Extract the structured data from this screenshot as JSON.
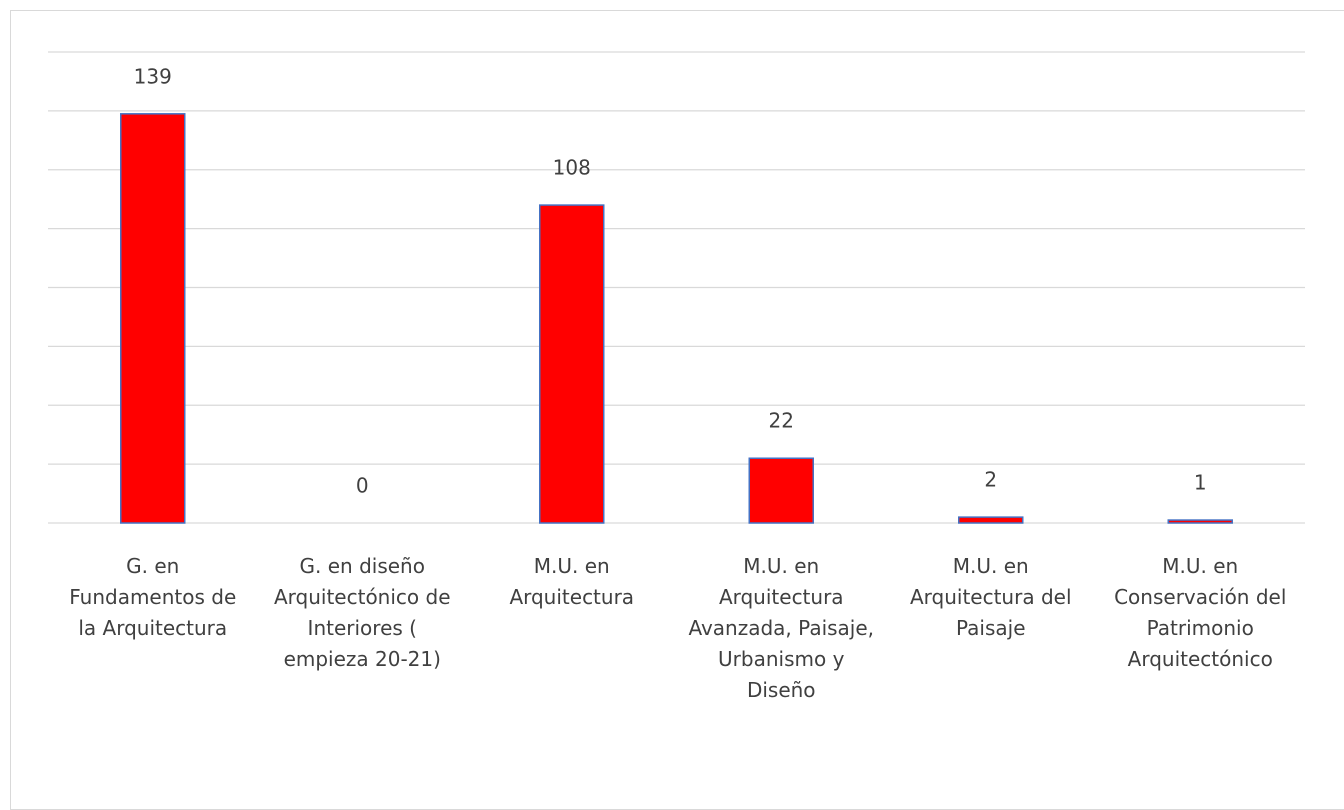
{
  "chart_data": {
    "type": "bar",
    "categories": [
      "G. en Fundamentos de la Arquitectura",
      "G. en diseño Arquitectónico de Interiores ( empieza 20-21)",
      "M.U. en Arquitectura",
      "M.U. en Arquitectura Avanzada, Paisaje, Urbanismo y Diseño",
      "M.U. en Arquitectura del Paisaje",
      "M.U. en Conservación del Patrimonio Arquitectónico"
    ],
    "values": [
      139,
      0,
      108,
      22,
      2,
      1
    ],
    "color": "#ff0000",
    "edge_color": "#4472c4",
    "ylim": [
      0,
      160
    ],
    "yticks": [
      0,
      20,
      40,
      60,
      80,
      100,
      120,
      140,
      160
    ],
    "grid": true
  }
}
